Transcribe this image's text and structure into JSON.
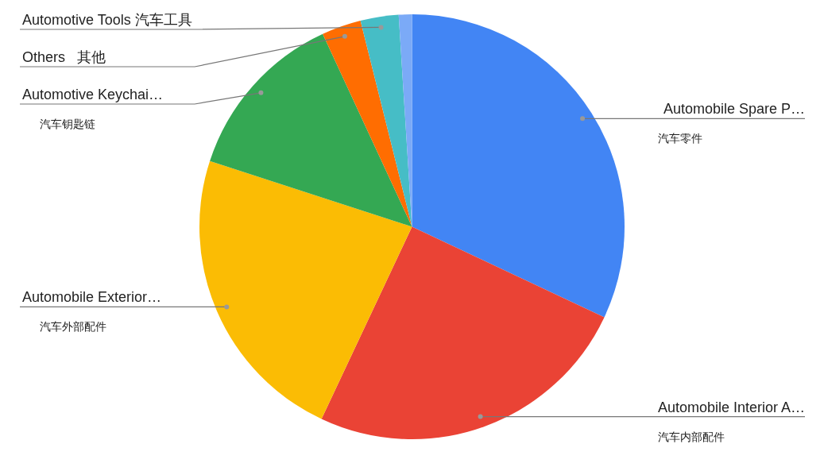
{
  "chart_data": {
    "type": "pie",
    "categories": [
      "Automobile Spare P…\n汽车零件",
      "Automobile Interior A…\n汽车内部配件",
      "Automobile Exterior…\n汽车外部配件",
      "Automotive Keychai…\n汽车钥匙链",
      "Others   其他",
      "Automotive Tools 汽车工具",
      null
    ],
    "values": [
      32,
      25,
      23,
      13.1,
      3,
      2.9,
      1
    ],
    "colors": [
      "#4285f4",
      "#ea4335",
      "#fbbc04",
      "#34a853",
      "#ff6d01",
      "#46bdc6",
      "#7baaf7"
    ],
    "legend": false
  }
}
